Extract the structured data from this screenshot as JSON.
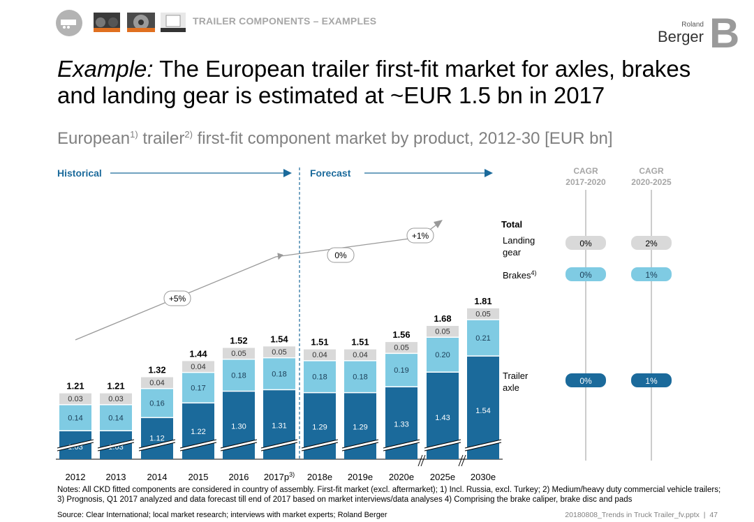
{
  "header": {
    "section_label": "TRAILER COMPONENTS – EXAMPLES",
    "title_prefix": "Example:",
    "title_rest": " The European trailer first-fit market for axles, brakes and landing gear is estimated at ~EUR 1.5 bn in 2017",
    "subtitle_a": "European",
    "subtitle_sup1": "1)",
    "subtitle_b": " trailer",
    "subtitle_sup2": "2)",
    "subtitle_c": " first-fit component market by product, 2012-30 [EUR bn]",
    "logo_small": "Roland",
    "logo_big": "Berger",
    "logo_letter": "B",
    "icons": [
      "trailer-icon",
      "axle-photo-icon",
      "brake-disc-photo-icon",
      "landing-gear-photo-icon"
    ]
  },
  "chart_data": {
    "type": "bar",
    "stacked": true,
    "title": "European trailer first-fit component market by product, 2012-30 [EUR bn]",
    "categories": [
      "2012",
      "2013",
      "2014",
      "2015",
      "2016",
      "2017p",
      "2018e",
      "2019e",
      "2020e",
      "2025e",
      "2030e"
    ],
    "category_superscripts": [
      "",
      "",
      "",
      "",
      "",
      "3)",
      "",
      "",
      "",
      "",
      ""
    ],
    "series": [
      {
        "name": "Trailer axle",
        "color": "#1b6a9b",
        "values": [
          "1.03",
          "1.03",
          "1.12",
          "1.22",
          "1.30",
          "1.31",
          "1.29",
          "1.29",
          "1.33",
          "1.43",
          "1.54"
        ]
      },
      {
        "name": "Brakes",
        "color": "#7fcbe3",
        "values": [
          "0.14",
          "0.14",
          "0.16",
          "0.17",
          "0.18",
          "0.18",
          "0.18",
          "0.18",
          "0.19",
          "0.20",
          "0.21"
        ]
      },
      {
        "name": "Landing gear",
        "color": "#d9d9d9",
        "values": [
          "0.03",
          "0.03",
          "0.04",
          "0.04",
          "0.05",
          "0.05",
          "0.04",
          "0.04",
          "0.05",
          "0.05",
          "0.05"
        ]
      }
    ],
    "totals": [
      "1.21",
      "1.21",
      "1.32",
      "1.44",
      "1.52",
      "1.54",
      "1.51",
      "1.51",
      "1.56",
      "1.68",
      "1.81"
    ],
    "total_label": "Total",
    "legend": {
      "landing_gear": "Landing gear",
      "brakes": "Brakes",
      "brakes_sup": "4)",
      "trailer_axle": "Trailer axle"
    },
    "periods": {
      "historical": "Historical",
      "forecast": "Forecast"
    },
    "growth_annotations": [
      "+5%",
      "0%",
      "+1%"
    ],
    "axis_break_categories": [
      "2025e",
      "2030e"
    ],
    "cagr": {
      "headers": [
        [
          "CAGR",
          "2017-2020"
        ],
        [
          "CAGR",
          "2020-2025"
        ]
      ],
      "landing_gear": [
        "0%",
        "2%"
      ],
      "brakes": [
        "0%",
        "1%"
      ],
      "trailer_axle": [
        "0%",
        "1%"
      ]
    }
  },
  "notes": "Notes: All CKD fitted components are considered in country of assembly. First-fit market (excl. aftermarket); 1) Incl. Russia, excl. Turkey; 2) Medium/heavy duty commercial vehicle trailers; 3) Prognosis, Q1 2017 analyzed and data forecast till end of 2017 based on market interviews/data analyses 4) Comprising the brake caliper, brake disc and pads",
  "footer": {
    "source": "Source: Clear International; local market research; interviews with market experts; Roland Berger",
    "file": "20180808_Trends in Truck Trailer_fv.pptx",
    "page": "47"
  }
}
